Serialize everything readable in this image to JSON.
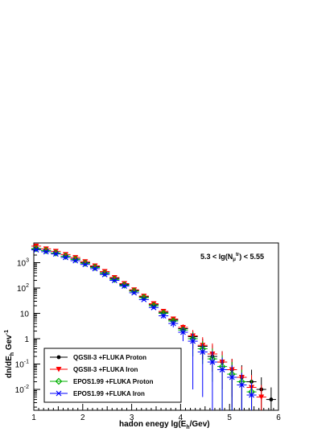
{
  "chart_data": {
    "type": "scatter",
    "title": "",
    "annotation": {
      "main": "5.3 < lg(N",
      "sub": "μ",
      "sup": "tr",
      "tail": ") < 5.55"
    },
    "xlabel": {
      "main": "hadon enegy lg(E",
      "sub": "h",
      "tail": "/Gev)"
    },
    "ylabel": {
      "main": "dn/dE",
      "sub": "h",
      "tail": "  Gev",
      "sup": "-1"
    },
    "xlim": [
      1,
      6
    ],
    "ylim": [
      0.0015,
      6000
    ],
    "yscale": "log",
    "x_tick_labels": [
      "1",
      "2",
      "3",
      "4",
      "5",
      "6"
    ],
    "y_tick_labels": [
      {
        "value": 1000,
        "base": "10",
        "exp": "3"
      },
      {
        "value": 100,
        "base": "10",
        "exp": "2"
      },
      {
        "value": 10,
        "base": "10",
        "exp": ""
      },
      {
        "value": 1,
        "base": "1",
        "exp": ""
      },
      {
        "value": 0.1,
        "base": "10",
        "exp": "-1"
      },
      {
        "value": 0.01,
        "base": "10",
        "exp": "-2"
      }
    ],
    "legend": "bottom-left",
    "series": [
      {
        "name": "QGSII-3 +FLUKA  Proton",
        "color": "#000000",
        "marker": "dot",
        "x": [
          1.05,
          1.25,
          1.45,
          1.65,
          1.85,
          2.05,
          2.25,
          2.45,
          2.65,
          2.85,
          3.05,
          3.25,
          3.45,
          3.65,
          3.85,
          4.05,
          4.25,
          4.45,
          4.65,
          4.85,
          5.05,
          5.25,
          5.45,
          5.65,
          5.85
        ],
        "y": [
          3500,
          3000,
          2400,
          1800,
          1400,
          1000,
          700,
          400,
          240,
          140,
          80,
          45,
          22,
          11,
          5.5,
          2.5,
          1.2,
          0.5,
          0.2,
          0.12,
          0.06,
          0.03,
          0.02,
          0.01,
          0.004
        ],
        "err_lo": [
          300,
          300,
          200,
          150,
          100,
          80,
          60,
          40,
          25,
          15,
          9,
          5,
          3,
          2,
          1.2,
          0.8,
          0.8,
          0.35,
          0.15,
          0.11,
          0.055,
          0.029,
          0.019,
          0.0098,
          0.0039
        ],
        "err_hi": [
          300,
          300,
          200,
          150,
          100,
          80,
          60,
          40,
          25,
          15,
          9,
          5,
          3,
          2,
          1.2,
          0.8,
          0.8,
          0.5,
          0.35,
          0.2,
          0.1,
          0.06,
          0.04,
          0.02,
          0.008
        ]
      },
      {
        "name": "QGSII-3 +FLUKA  Iron",
        "color": "#ff0000",
        "marker": "triangle-down",
        "x": [
          1.05,
          1.25,
          1.45,
          1.65,
          1.85,
          2.05,
          2.25,
          2.45,
          2.65,
          2.85,
          3.05,
          3.25,
          3.45,
          3.65,
          3.85,
          4.05,
          4.25,
          4.45,
          4.65,
          4.85,
          5.05,
          5.25,
          5.45,
          5.65
        ],
        "y": [
          4500,
          3500,
          2800,
          2100,
          1600,
          1100,
          750,
          450,
          260,
          150,
          85,
          48,
          24,
          12,
          6,
          2.8,
          1.3,
          0.55,
          0.25,
          0.12,
          0.06,
          0.03,
          0.012,
          0.005
        ],
        "err_lo": [
          400,
          300,
          250,
          180,
          130,
          90,
          60,
          40,
          25,
          15,
          9,
          5,
          3,
          2,
          1.3,
          0.9,
          0.9,
          0.4,
          0.2,
          0.11,
          0.058,
          0.029,
          0.0118,
          0.0049
        ],
        "err_hi": [
          400,
          300,
          250,
          180,
          130,
          90,
          60,
          40,
          25,
          15,
          9,
          5,
          3,
          2,
          1.3,
          0.9,
          0.9,
          0.6,
          0.4,
          0.2,
          0.1,
          0.05,
          0.025,
          0.01
        ]
      },
      {
        "name": "EPOS1.99 +FLUKA  Proton",
        "color": "#00b000",
        "marker": "diamond",
        "x": [
          1.05,
          1.25,
          1.45,
          1.65,
          1.85,
          2.05,
          2.25,
          2.45,
          2.65,
          2.85,
          3.05,
          3.25,
          3.45,
          3.65,
          3.85,
          4.05,
          4.25,
          4.45,
          4.65,
          4.85,
          5.05,
          5.25,
          5.45
        ],
        "y": [
          3600,
          3000,
          2400,
          1800,
          1350,
          950,
          650,
          380,
          220,
          130,
          75,
          42,
          20,
          10,
          5,
          2.2,
          1,
          0.4,
          0.16,
          0.08,
          0.04,
          0.02,
          0.008
        ],
        "err_lo": [
          300,
          250,
          200,
          150,
          100,
          80,
          50,
          35,
          22,
          14,
          8,
          5,
          3,
          2,
          1.2,
          0.8,
          0.8,
          0.3,
          0.14,
          0.079,
          0.0395,
          0.0198,
          0.0079
        ],
        "err_hi": [
          300,
          250,
          200,
          150,
          100,
          80,
          50,
          35,
          22,
          14,
          8,
          5,
          3,
          2,
          1.2,
          0.8,
          0.8,
          0.4,
          0.25,
          0.14,
          0.08,
          0.04,
          0.016
        ]
      },
      {
        "name": "EPOS1.99 +FLUKA  Iron",
        "color": "#0000ff",
        "marker": "x",
        "x": [
          1.05,
          1.25,
          1.45,
          1.65,
          1.85,
          2.05,
          2.25,
          2.45,
          2.65,
          2.85,
          3.05,
          3.25,
          3.45,
          3.65,
          3.85,
          4.05,
          4.25,
          4.45,
          4.65,
          4.85,
          5.05,
          5.25,
          5.45
        ],
        "y": [
          3200,
          2700,
          2200,
          1600,
          1200,
          850,
          580,
          340,
          200,
          120,
          65,
          35,
          17,
          8,
          4,
          1.8,
          0.8,
          0.3,
          0.12,
          0.06,
          0.03,
          0.015,
          0.006
        ],
        "err_lo": [
          300,
          250,
          200,
          150,
          100,
          70,
          50,
          35,
          20,
          12,
          7,
          4,
          2.5,
          1.7,
          1.2,
          1,
          0.79,
          0.295,
          0.119,
          0.0595,
          0.0298,
          0.0149,
          0.0059
        ],
        "err_hi": [
          300,
          250,
          200,
          150,
          100,
          70,
          50,
          35,
          20,
          12,
          7,
          4,
          2.5,
          1.7,
          1.2,
          1,
          0.79,
          0.3,
          0.2,
          0.12,
          0.06,
          0.03,
          0.012
        ]
      }
    ]
  }
}
